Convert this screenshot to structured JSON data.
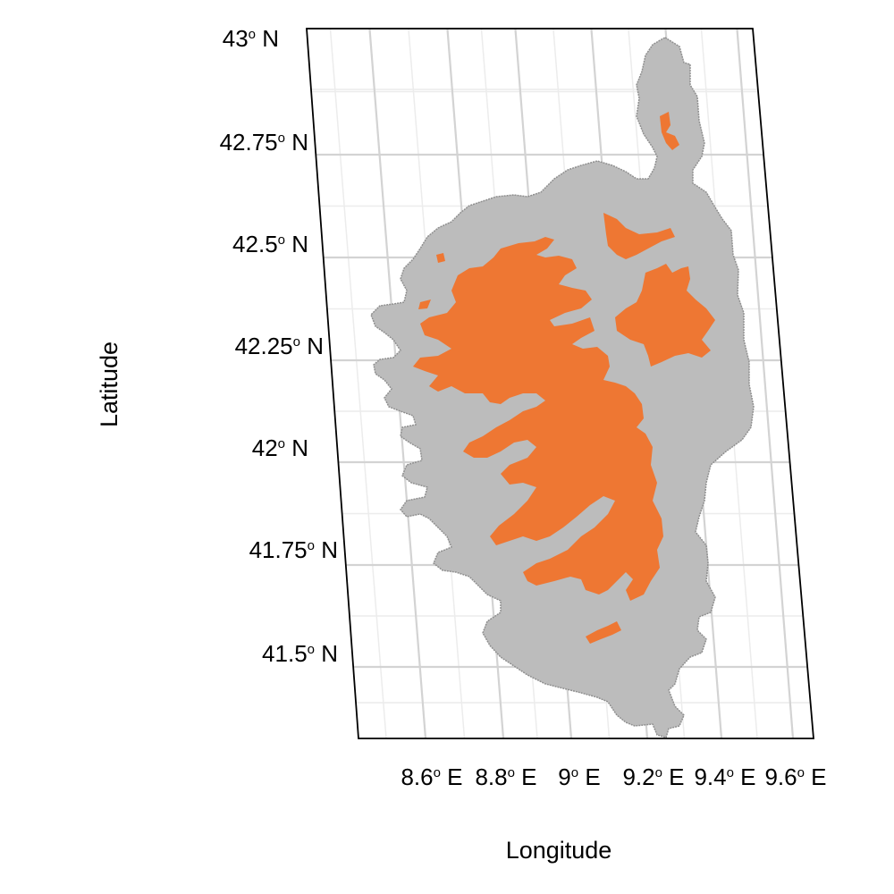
{
  "map": {
    "xlabel": "Longitude",
    "ylabel": "Latitude",
    "lat_ticks": [
      {
        "deg": "43",
        "hem": "N"
      },
      {
        "deg": "42.75",
        "hem": "N"
      },
      {
        "deg": "42.5",
        "hem": "N"
      },
      {
        "deg": "42.25",
        "hem": "N"
      },
      {
        "deg": "42",
        "hem": "N"
      },
      {
        "deg": "41.75",
        "hem": "N"
      },
      {
        "deg": "41.5",
        "hem": "N"
      }
    ],
    "lon_ticks": [
      {
        "deg": "8.6",
        "hem": "E"
      },
      {
        "deg": "8.8",
        "hem": "E"
      },
      {
        "deg": "9",
        "hem": "E"
      },
      {
        "deg": "9.2",
        "hem": "E"
      },
      {
        "deg": "9.4",
        "hem": "E"
      },
      {
        "deg": "9.6",
        "hem": "E"
      }
    ],
    "degree_symbol": "o",
    "colors": {
      "land": "#bcbcbc",
      "land_outline": "#8f8f8f",
      "highlight": "#ee7733",
      "grid_major": "#d3d3d3",
      "grid_minor": "#ececec",
      "frame": "#000000"
    }
  }
}
